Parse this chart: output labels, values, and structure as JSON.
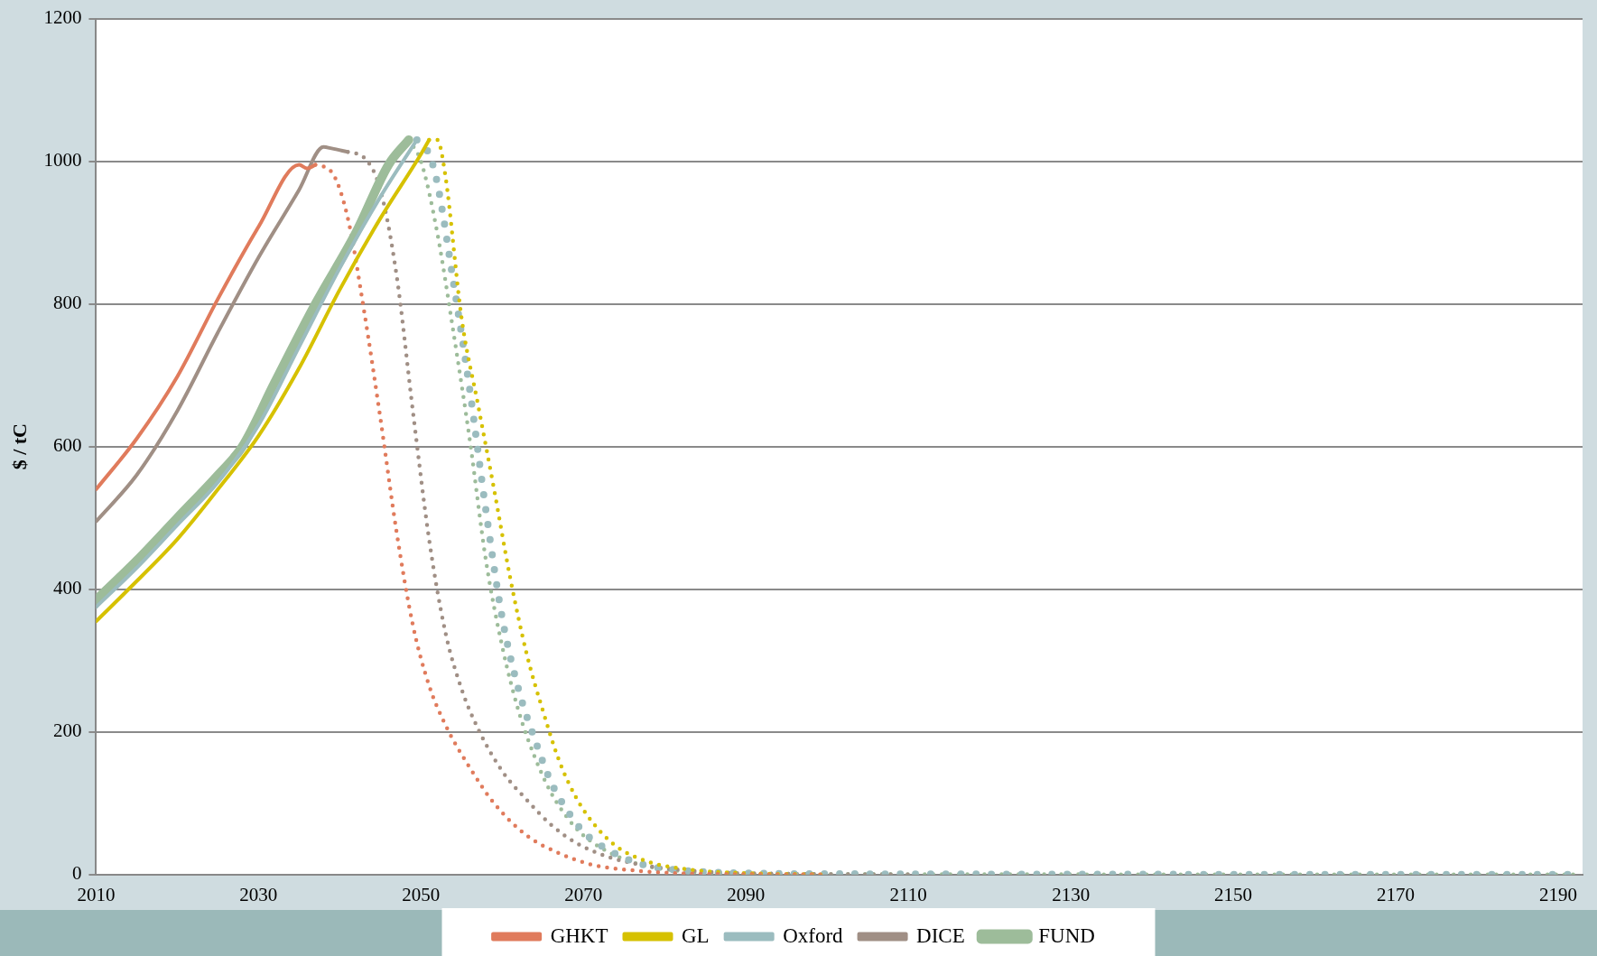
{
  "chart_data": {
    "type": "line",
    "ylabel": "$ / tC",
    "xlim": [
      2010,
      2193
    ],
    "xticks": [
      2010,
      2030,
      2050,
      2070,
      2090,
      2110,
      2130,
      2150,
      2170,
      2190
    ],
    "ylim": [
      0,
      1200
    ],
    "yticks": [
      0,
      200,
      400,
      600,
      800,
      1000,
      1200
    ],
    "grid": "y",
    "legend": "bottom",
    "marker": "none",
    "series": [
      {
        "name": "GHKT",
        "color": "#e07b5c",
        "line_style": "solid",
        "x": [
          2010,
          2015,
          2020,
          2025,
          2030,
          2035,
          2036,
          2037
        ],
        "values": [
          540,
          611,
          698,
          807,
          908,
          995,
          990,
          995
        ]
      },
      {
        "name": "GL",
        "color": "#d6c100",
        "line_style": "solid",
        "x": [
          2010,
          2014,
          2020,
          2025,
          2030,
          2035,
          2040,
          2045,
          2050,
          2051
        ],
        "values": [
          355,
          400,
          470,
          540,
          615,
          710,
          820,
          920,
          1010,
          1030
        ]
      },
      {
        "name": "Oxford",
        "color": "#9bbcbf",
        "line_style": "solid",
        "x": [
          2010,
          2015,
          2020,
          2025,
          2030,
          2035,
          2040,
          2045,
          2049.5
        ],
        "values": [
          375,
          430,
          490,
          550,
          630,
          740,
          850,
          950,
          1030
        ]
      },
      {
        "name": "DICE",
        "color": "#a08f85",
        "line_style": "solid",
        "x": [
          2010,
          2015,
          2020,
          2025,
          2030,
          2035,
          2038,
          2039,
          2041
        ],
        "values": [
          495,
          560,
          650,
          760,
          865,
          960,
          1020,
          1018,
          1013
        ]
      },
      {
        "name": "FUND",
        "color": "#9dbc9a",
        "line_style": "solid",
        "x": [
          2010,
          2015,
          2020,
          2025,
          2028,
          2032,
          2037,
          2042,
          2046,
          2048.5
        ],
        "values": [
          385,
          440,
          500,
          560,
          600,
          690,
          800,
          900,
          995,
          1030
        ]
      },
      {
        "color": "#e07b5c",
        "line_style": "dotted",
        "x": [
          2037,
          2039,
          2041,
          2043,
          2045,
          2047,
          2049,
          2051,
          2053,
          2056,
          2059,
          2063,
          2067,
          2071,
          2077,
          2085,
          2100
        ],
        "values": [
          995,
          985,
          920,
          790,
          640,
          480,
          350,
          265,
          210,
          150,
          100,
          55,
          30,
          14,
          5,
          1,
          0
        ]
      },
      {
        "color": "#d6c100",
        "line_style": "dotted",
        "x": [
          2051,
          2052,
          2053,
          2055,
          2057,
          2059,
          2061,
          2063,
          2065,
          2067,
          2069,
          2071,
          2074,
          2078,
          2083,
          2090,
          2100
        ],
        "values": [
          1030,
          1030,
          980,
          780,
          660,
          540,
          415,
          310,
          230,
          160,
          110,
          75,
          40,
          18,
          7,
          2,
          0
        ]
      },
      {
        "color": "#9bbcbf",
        "line_style": "dotted",
        "x": [
          2049.5,
          2051,
          2052,
          2054,
          2056,
          2058,
          2060,
          2062,
          2064,
          2066,
          2068,
          2070,
          2073,
          2077,
          2082,
          2090,
          2100,
          2192
        ],
        "values": [
          1030,
          1010,
          970,
          830,
          680,
          510,
          360,
          260,
          190,
          130,
          90,
          60,
          35,
          15,
          6,
          2,
          1,
          0
        ]
      },
      {
        "color": "#a08f85",
        "line_style": "dotted",
        "x": [
          2041,
          2043,
          2045,
          2047,
          2049,
          2051,
          2053,
          2055,
          2057,
          2060,
          2063,
          2066,
          2069,
          2073,
          2078,
          2085,
          2095,
          2110
        ],
        "values": [
          1013,
          1005,
          960,
          840,
          650,
          470,
          340,
          260,
          205,
          145,
          105,
          70,
          45,
          25,
          12,
          4,
          1,
          0
        ]
      },
      {
        "color": "#9dbc9a",
        "line_style": "dotted",
        "x": [
          2048.5,
          2050,
          2052,
          2054,
          2056,
          2058,
          2060,
          2062,
          2064,
          2066,
          2068,
          2070,
          2073,
          2077,
          2082,
          2090,
          2192
        ],
        "values": [
          1030,
          1000,
          900,
          760,
          610,
          440,
          320,
          230,
          165,
          115,
          80,
          55,
          32,
          14,
          5,
          1,
          0
        ]
      }
    ]
  }
}
